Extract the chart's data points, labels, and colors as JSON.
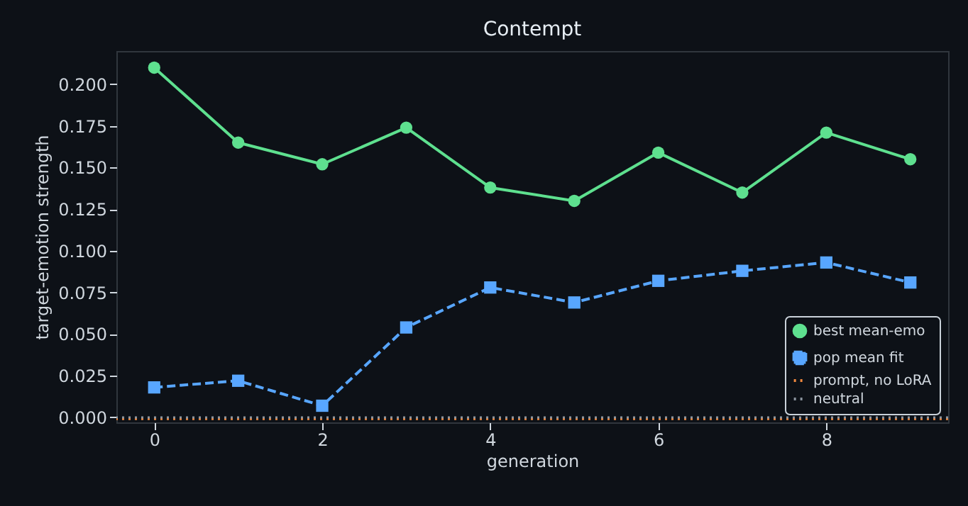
{
  "chart_data": {
    "type": "line",
    "title": "Contempt",
    "xlabel": "generation",
    "ylabel": "target-emotion strength",
    "x": [
      0,
      1,
      2,
      3,
      4,
      5,
      6,
      7,
      8,
      9
    ],
    "series": [
      {
        "name": "best mean-emo",
        "color": "#5ee08f",
        "values": [
          0.21,
          0.165,
          0.152,
          0.174,
          0.138,
          0.13,
          0.159,
          0.135,
          0.171,
          0.155
        ]
      },
      {
        "name": "pop mean fit",
        "color": "#58a6ff",
        "values": [
          0.018,
          0.022,
          0.007,
          0.054,
          0.078,
          0.069,
          0.082,
          0.088,
          0.093,
          0.081
        ]
      }
    ],
    "marker": [
      "circle",
      "square"
    ],
    "line_style": [
      "solid",
      "dashed"
    ],
    "ref_lines": [
      {
        "axis": "y",
        "value": -0.001,
        "label": "prompt, no LoRA",
        "color": "#f0883e",
        "line_style": "dotted"
      },
      {
        "axis": "y",
        "value": 0,
        "label": "neutral",
        "color": "#8b949e",
        "line_style": "dotted"
      }
    ],
    "xlim": [
      -0.45,
      9.45
    ],
    "xticks": [
      0,
      2,
      4,
      6,
      8
    ],
    "ylim": [
      -0.003,
      0.22
    ],
    "yticks": [
      {
        "value": 0,
        "label": "0.000"
      },
      {
        "value": 0.025,
        "label": "0.025"
      },
      {
        "value": 0.05,
        "label": "0.050"
      },
      {
        "value": 0.075,
        "label": "0.075"
      },
      {
        "value": 0.1,
        "label": "0.100"
      },
      {
        "value": 0.125,
        "label": "0.125"
      },
      {
        "value": 0.15,
        "label": "0.150"
      },
      {
        "value": 0.175,
        "label": "0.175"
      },
      {
        "value": 0.2,
        "label": "0.200"
      }
    ],
    "grid": false,
    "legend": "bottom right"
  }
}
